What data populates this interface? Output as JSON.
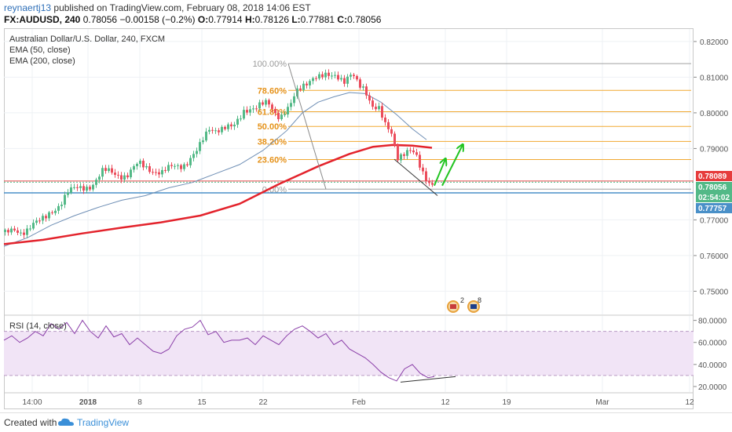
{
  "header": {
    "user": "reynaertj13",
    "published": "published on TradingView.com, February 08, 2018 14:06 EST",
    "symbol": "FX:AUDUSD, 240",
    "price": "0.78056",
    "change": "−0.00158 (−0.2%)",
    "o_label": "O:",
    "o_val": "0.77914",
    "h_label": "H:",
    "h_val": "0.78126",
    "l_label": "L:",
    "l_val": "0.77881",
    "c_label": "C:",
    "c_val": "0.78056"
  },
  "legend": {
    "title": "Australian Dollar/U.S. Dollar, 240, FXCM",
    "ema50": "EMA (50, close)",
    "ema200": "EMA (200, close)",
    "rsi": "RSI (14, close)"
  },
  "footer": {
    "created": "Created with",
    "brand": "TradingView"
  },
  "badges": {
    "count_a": "2",
    "count_b": "8"
  },
  "colors": {
    "bull": "#53b987",
    "bear": "#eb4d5c",
    "ema50": "#6f8fb5",
    "ema200": "#e3232c",
    "fib": "#f0a830",
    "fib_text": "#e5921a",
    "rsi": "#8a3ea8",
    "rsi_band": "#f1e4f6",
    "price_label": "#e63c3c",
    "support": "#4a90c8",
    "arrow": "#22c422"
  },
  "chart_data": [
    {
      "type": "candlestick",
      "title": "Australian Dollar/U.S. Dollar, 240, FXCM",
      "x_ticks": [
        "14:00",
        "2018",
        "8",
        "15",
        "22",
        "Feb",
        "12",
        "19",
        "Mar",
        "12"
      ],
      "y_ticks": [
        "0.82000",
        "0.81000",
        "0.80000",
        "0.79000",
        "0.77000",
        "0.76000",
        "0.75000"
      ],
      "ylim": [
        0.7435,
        0.8235
      ],
      "price_labels": [
        {
          "text": "0.78089",
          "value": 0.78089
        },
        {
          "text": "0.78056",
          "value": 0.78056
        },
        {
          "text": "02:54:02",
          "value": 0.77905
        },
        {
          "text": "0.77757",
          "value": 0.77757
        }
      ],
      "fibonacci": [
        {
          "label": "100.00%",
          "value": 0.8138
        },
        {
          "label": "78.60%",
          "value": 0.8063
        },
        {
          "label": "61.80%",
          "value": 0.8003
        },
        {
          "label": "50.00%",
          "value": 0.7962
        },
        {
          "label": "38.20%",
          "value": 0.792
        },
        {
          "label": "23.60%",
          "value": 0.7869
        },
        {
          "label": "0.00%",
          "value": 0.7786
        }
      ],
      "support_levels": [
        0.78089,
        0.77757
      ],
      "series": [
        {
          "name": "EMA (50, close)",
          "points": [
            [
              0,
              0.7626
            ],
            [
              30,
              0.765
            ],
            [
              60,
              0.7685
            ],
            [
              90,
              0.7712
            ],
            [
              120,
              0.7735
            ],
            [
              150,
              0.7755
            ],
            [
              180,
              0.7768
            ],
            [
              210,
              0.779
            ],
            [
              240,
              0.7805
            ],
            [
              270,
              0.783
            ],
            [
              300,
              0.7855
            ],
            [
              330,
              0.7895
            ],
            [
              360,
              0.795
            ],
            [
              380,
              0.8
            ],
            [
              400,
              0.803
            ],
            [
              420,
              0.8045
            ],
            [
              440,
              0.8057
            ],
            [
              460,
              0.8054
            ],
            [
              480,
              0.803
            ],
            [
              500,
              0.7995
            ],
            [
              520,
              0.7955
            ],
            [
              538,
              0.7925
            ]
          ]
        },
        {
          "name": "EMA (200, close)",
          "points": [
            [
              0,
              0.7632
            ],
            [
              50,
              0.7644
            ],
            [
              100,
              0.7662
            ],
            [
              150,
              0.7678
            ],
            [
              200,
              0.7693
            ],
            [
              250,
              0.7712
            ],
            [
              300,
              0.7745
            ],
            [
              350,
              0.78
            ],
            [
              400,
              0.785
            ],
            [
              440,
              0.7885
            ],
            [
              470,
              0.7905
            ],
            [
              495,
              0.791
            ],
            [
              520,
              0.7908
            ],
            [
              545,
              0.7902
            ]
          ]
        },
        {
          "name": "price",
          "points": [
            [
              0,
              0.7666
            ],
            [
              20,
              0.766
            ],
            [
              35,
              0.7695
            ],
            [
              50,
              0.7697
            ],
            [
              65,
              0.7735
            ],
            [
              80,
              0.778
            ],
            [
              95,
              0.7785
            ],
            [
              110,
              0.78
            ],
            [
              125,
              0.7835
            ],
            [
              140,
              0.783
            ],
            [
              155,
              0.7825
            ],
            [
              170,
              0.7855
            ],
            [
              185,
              0.7845
            ],
            [
              200,
              0.783
            ],
            [
              215,
              0.785
            ],
            [
              230,
              0.786
            ],
            [
              245,
              0.789
            ],
            [
              260,
              0.796
            ],
            [
              275,
              0.7955
            ],
            [
              290,
              0.7955
            ],
            [
              305,
              0.8015
            ],
            [
              320,
              0.801
            ],
            [
              335,
              0.803
            ],
            [
              350,
              0.799
            ],
            [
              362,
              0.801
            ],
            [
              372,
              0.806
            ],
            [
              382,
              0.8088
            ],
            [
              392,
              0.81
            ],
            [
              402,
              0.8095
            ],
            [
              412,
              0.8103
            ],
            [
              422,
              0.8112
            ],
            [
              432,
              0.809
            ],
            [
              442,
              0.8103
            ],
            [
              450,
              0.8075
            ],
            [
              458,
              0.807
            ],
            [
              468,
              0.8023
            ],
            [
              476,
              0.801
            ],
            [
              484,
              0.796
            ],
            [
              492,
              0.794
            ],
            [
              500,
              0.788
            ],
            [
              506,
              0.789
            ],
            [
              514,
              0.7895
            ],
            [
              522,
              0.788
            ],
            [
              530,
              0.7835
            ],
            [
              538,
              0.7812
            ],
            [
              544,
              0.7806
            ]
          ]
        }
      ],
      "annotations": [
        {
          "type": "trendline",
          "from": [
            362,
            0.8138
          ],
          "to": [
            410,
            0.7786
          ]
        },
        {
          "type": "trendline",
          "from": [
            497,
            0.787
          ],
          "to": [
            552,
            0.7768
          ]
        },
        {
          "type": "arrow",
          "from": [
            548,
            0.7796
          ],
          "to": [
            562,
            0.787
          ]
        },
        {
          "type": "arrow",
          "from": [
            558,
            0.7796
          ],
          "to": [
            584,
            0.791
          ]
        }
      ]
    },
    {
      "type": "line",
      "title": "RSI (14, close)",
      "y_ticks": [
        "80.0000",
        "60.0000",
        "40.0000",
        "20.0000"
      ],
      "ylim": [
        15,
        84
      ],
      "bands": [
        70,
        30
      ],
      "series": [
        {
          "name": "RSI (14, close)",
          "points": [
            [
              0,
              62
            ],
            [
              10,
              66
            ],
            [
              20,
              60
            ],
            [
              30,
              64
            ],
            [
              40,
              70
            ],
            [
              50,
              66
            ],
            [
              60,
              77
            ],
            [
              70,
              72
            ],
            [
              80,
              78
            ],
            [
              90,
              68
            ],
            [
              100,
              80
            ],
            [
              110,
              70
            ],
            [
              120,
              64
            ],
            [
              130,
              75
            ],
            [
              140,
              65
            ],
            [
              150,
              68
            ],
            [
              160,
              58
            ],
            [
              170,
              64
            ],
            [
              180,
              58
            ],
            [
              190,
              52
            ],
            [
              200,
              50
            ],
            [
              210,
              54
            ],
            [
              220,
              66
            ],
            [
              230,
              72
            ],
            [
              240,
              74
            ],
            [
              250,
              80
            ],
            [
              260,
              67
            ],
            [
              270,
              70
            ],
            [
              280,
              60
            ],
            [
              290,
              62
            ],
            [
              300,
              62
            ],
            [
              310,
              64
            ],
            [
              320,
              58
            ],
            [
              330,
              66
            ],
            [
              340,
              62
            ],
            [
              350,
              58
            ],
            [
              360,
              66
            ],
            [
              370,
              72
            ],
            [
              380,
              75
            ],
            [
              390,
              70
            ],
            [
              400,
              64
            ],
            [
              410,
              68
            ],
            [
              420,
              58
            ],
            [
              430,
              62
            ],
            [
              440,
              54
            ],
            [
              450,
              50
            ],
            [
              460,
              46
            ],
            [
              470,
              40
            ],
            [
              480,
              33
            ],
            [
              490,
              28
            ],
            [
              500,
              25
            ],
            [
              510,
              36
            ],
            [
              520,
              40
            ],
            [
              530,
              32
            ],
            [
              540,
              28
            ],
            [
              548,
              29
            ]
          ]
        }
      ],
      "annotations": [
        {
          "type": "trendline",
          "from": [
            505,
            24
          ],
          "to": [
            575,
            29
          ]
        }
      ]
    }
  ]
}
